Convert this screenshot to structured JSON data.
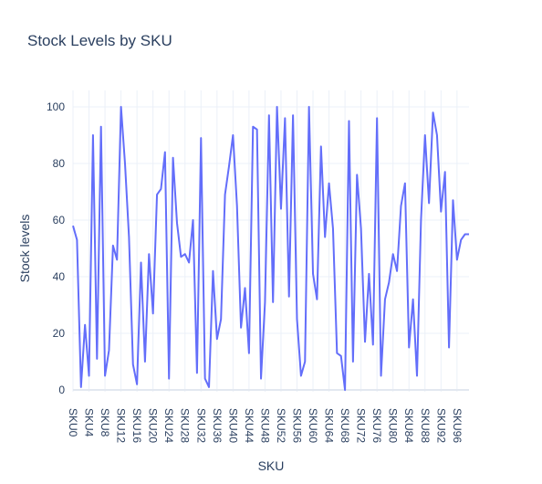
{
  "chart_data": {
    "type": "line",
    "title": "Stock Levels by SKU",
    "xlabel": "SKU",
    "ylabel": "Stock levels",
    "ylim": [
      0,
      100
    ],
    "yticks": [
      0,
      20,
      40,
      60,
      80,
      100
    ],
    "x_tick_labels": [
      "SKU0",
      "SKU4",
      "SKU8",
      "SKU12",
      "SKU16",
      "SKU20",
      "SKU24",
      "SKU28",
      "SKU32",
      "SKU36",
      "SKU40",
      "SKU44",
      "SKU48",
      "SKU52",
      "SKU56",
      "SKU60",
      "SKU64",
      "SKU68",
      "SKU72",
      "SKU76",
      "SKU80",
      "SKU84",
      "SKU88",
      "SKU92",
      "SKU96"
    ],
    "grid": true,
    "line_color": "#636efa",
    "categories": [
      "SKU0",
      "SKU1",
      "SKU2",
      "SKU3",
      "SKU4",
      "SKU5",
      "SKU6",
      "SKU7",
      "SKU8",
      "SKU9",
      "SKU10",
      "SKU11",
      "SKU12",
      "SKU13",
      "SKU14",
      "SKU15",
      "SKU16",
      "SKU17",
      "SKU18",
      "SKU19",
      "SKU20",
      "SKU21",
      "SKU22",
      "SKU23",
      "SKU24",
      "SKU25",
      "SKU26",
      "SKU27",
      "SKU28",
      "SKU29",
      "SKU30",
      "SKU31",
      "SKU32",
      "SKU33",
      "SKU34",
      "SKU35",
      "SKU36",
      "SKU37",
      "SKU38",
      "SKU39",
      "SKU40",
      "SKU41",
      "SKU42",
      "SKU43",
      "SKU44",
      "SKU45",
      "SKU46",
      "SKU47",
      "SKU48",
      "SKU49",
      "SKU50",
      "SKU51",
      "SKU52",
      "SKU53",
      "SKU54",
      "SKU55",
      "SKU56",
      "SKU57",
      "SKU58",
      "SKU59",
      "SKU60",
      "SKU61",
      "SKU62",
      "SKU63",
      "SKU64",
      "SKU65",
      "SKU66",
      "SKU67",
      "SKU68",
      "SKU69",
      "SKU70",
      "SKU71",
      "SKU72",
      "SKU73",
      "SKU74",
      "SKU75",
      "SKU76",
      "SKU77",
      "SKU78",
      "SKU79",
      "SKU80",
      "SKU81",
      "SKU82",
      "SKU83",
      "SKU84",
      "SKU85",
      "SKU86",
      "SKU87",
      "SKU88",
      "SKU89",
      "SKU90",
      "SKU91",
      "SKU92",
      "SKU93",
      "SKU94",
      "SKU95",
      "SKU96",
      "SKU97",
      "SKU98",
      "SKU99"
    ],
    "values": [
      58,
      53,
      1,
      23,
      5,
      90,
      11,
      93,
      5,
      14,
      51,
      46,
      100,
      80,
      54,
      9,
      2,
      45,
      10,
      48,
      27,
      69,
      71,
      84,
      4,
      82,
      59,
      47,
      48,
      45,
      60,
      6,
      89,
      4,
      1,
      42,
      18,
      25,
      69,
      79,
      90,
      65,
      22,
      36,
      13,
      93,
      92,
      4,
      31,
      97,
      31,
      100,
      64,
      96,
      33,
      97,
      25,
      5,
      10,
      100,
      41,
      32,
      86,
      54,
      73,
      57,
      13,
      12,
      0,
      95,
      10,
      76,
      57,
      17,
      41,
      16,
      96,
      5,
      32,
      38,
      48,
      42,
      65,
      73,
      15,
      32,
      5,
      60,
      90,
      66,
      98,
      90,
      63,
      77,
      15,
      67,
      46,
      53,
      55,
      55
    ]
  }
}
